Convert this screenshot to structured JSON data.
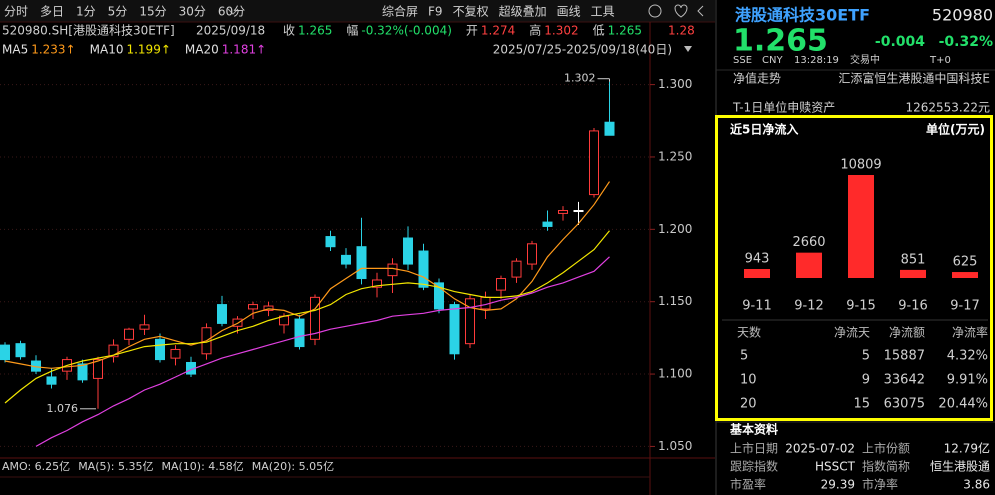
{
  "toolbar": {
    "periods": [
      "分时",
      "多日",
      "1分",
      "5分",
      "15分",
      "30分",
      "60分"
    ],
    "tools": [
      "综合屏",
      "F9",
      "不复权",
      "超级叠加",
      "画线",
      "工具"
    ]
  },
  "info": {
    "symbol": "520980.SH[港股通科技30ETF]",
    "date": "2025/09/18",
    "fields": [
      {
        "label": "收",
        "value": "1.265",
        "color": "#22e06a"
      },
      {
        "label": "幅",
        "value": "-0.32%(-0.004)",
        "color": "#22e06a"
      },
      {
        "label": "开",
        "value": "1.274",
        "color": "#ff4040"
      },
      {
        "label": "高",
        "value": "1.302",
        "color": "#ff4040"
      },
      {
        "label": "低",
        "value": "1.265",
        "color": "#22e06a"
      }
    ],
    "clipped": "1.28"
  },
  "range": "2025/07/25-2025/09/18(40日)",
  "chart_data": [
    {
      "type": "candlestick",
      "open": [
        1.12,
        1.121,
        1.109,
        1.098,
        1.102,
        1.107,
        1.097,
        1.112,
        1.124,
        1.131,
        1.124,
        1.111,
        1.108,
        1.114,
        1.148,
        1.133,
        1.145,
        1.144,
        1.134,
        1.138,
        1.124,
        1.195,
        1.182,
        1.188,
        1.16,
        1.168,
        1.194,
        1.185,
        1.163,
        1.148,
        1.121,
        1.145,
        1.158,
        1.167,
        1.176,
        1.205,
        1.211,
        1.213,
        1.224,
        1.274
      ],
      "high": [
        1.122,
        1.123,
        1.113,
        1.104,
        1.112,
        1.11,
        1.112,
        1.124,
        1.132,
        1.141,
        1.128,
        1.12,
        1.112,
        1.135,
        1.154,
        1.14,
        1.15,
        1.15,
        1.142,
        1.141,
        1.155,
        1.199,
        1.187,
        1.208,
        1.17,
        1.18,
        1.202,
        1.19,
        1.166,
        1.15,
        1.155,
        1.157,
        1.168,
        1.18,
        1.192,
        1.213,
        1.216,
        1.219,
        1.27,
        1.302
      ],
      "low": [
        1.108,
        1.11,
        1.1,
        1.09,
        1.096,
        1.094,
        1.076,
        1.108,
        1.12,
        1.127,
        1.108,
        1.106,
        1.098,
        1.11,
        1.133,
        1.128,
        1.138,
        1.14,
        1.128,
        1.117,
        1.12,
        1.185,
        1.173,
        1.162,
        1.153,
        1.156,
        1.172,
        1.158,
        1.142,
        1.11,
        1.118,
        1.138,
        1.152,
        1.163,
        1.172,
        1.199,
        1.206,
        1.203,
        1.222,
        1.265
      ],
      "close": [
        1.11,
        1.112,
        1.102,
        1.093,
        1.11,
        1.096,
        1.11,
        1.12,
        1.131,
        1.134,
        1.11,
        1.117,
        1.1,
        1.132,
        1.135,
        1.138,
        1.148,
        1.147,
        1.14,
        1.119,
        1.153,
        1.188,
        1.176,
        1.166,
        1.165,
        1.176,
        1.176,
        1.16,
        1.145,
        1.114,
        1.152,
        1.153,
        1.166,
        1.178,
        1.19,
        1.202,
        1.213,
        1.213,
        1.268,
        1.265
      ],
      "up_color": "#ff3b3b",
      "down_color": "#2bd3e6",
      "flat_color": "#ffffff",
      "series": [
        {
          "name": "MA5",
          "color": "#ff9a1a",
          "last_label": "1.233↑",
          "values": [
            1.109,
            1.107,
            1.105,
            1.104,
            1.105,
            1.106,
            1.109,
            1.113,
            1.119,
            1.124,
            1.126,
            1.123,
            1.12,
            1.123,
            1.13,
            1.135,
            1.142,
            1.145,
            1.144,
            1.14,
            1.145,
            1.159,
            1.166,
            1.173,
            1.173,
            1.173,
            1.171,
            1.167,
            1.16,
            1.152,
            1.146,
            1.144,
            1.145,
            1.152,
            1.164,
            1.181,
            1.193,
            1.204,
            1.217,
            1.233
          ]
        },
        {
          "name": "MA10",
          "color": "#f2e600",
          "last_label": "1.199↑",
          "values": [
            1.08,
            1.089,
            1.097,
            1.102,
            1.106,
            1.109,
            1.111,
            1.113,
            1.116,
            1.119,
            1.12,
            1.121,
            1.121,
            1.122,
            1.126,
            1.13,
            1.133,
            1.137,
            1.14,
            1.142,
            1.144,
            1.148,
            1.155,
            1.159,
            1.161,
            1.162,
            1.163,
            1.162,
            1.16,
            1.157,
            1.155,
            1.153,
            1.153,
            1.154,
            1.157,
            1.163,
            1.17,
            1.178,
            1.186,
            1.199
          ]
        },
        {
          "name": "MA20",
          "color": "#e040e0",
          "last_label": "1.181↑",
          "values": [
            null,
            null,
            1.05,
            1.056,
            1.061,
            1.067,
            1.072,
            1.078,
            1.083,
            1.089,
            1.093,
            1.098,
            1.103,
            1.107,
            1.111,
            1.114,
            1.117,
            1.12,
            1.123,
            1.126,
            1.128,
            1.131,
            1.133,
            1.135,
            1.137,
            1.14,
            1.141,
            1.142,
            1.144,
            1.145,
            1.146,
            1.148,
            1.151,
            1.153,
            1.156,
            1.16,
            1.163,
            1.167,
            1.171,
            1.181
          ]
        }
      ],
      "ylim": [
        1.042,
        1.317
      ],
      "yticks": [
        {
          "value": 1.3,
          "label": "1.300"
        },
        {
          "value": 1.25,
          "label": "1.250"
        },
        {
          "value": 1.2,
          "label": "1.200"
        },
        {
          "value": 1.15,
          "label": "1.150"
        },
        {
          "value": 1.1,
          "label": "1.100"
        },
        {
          "value": 1.05,
          "label": "1.050"
        }
      ],
      "grid": true
    },
    {
      "type": "bar",
      "title": "近5日净流入",
      "unit": "单位(万元)",
      "categories": [
        "9-11",
        "9-12",
        "9-15",
        "9-16",
        "9-17"
      ],
      "values": [
        943,
        2660,
        10809,
        851,
        625
      ],
      "color": "#ff2a2a"
    }
  ],
  "amo": [
    {
      "text": "AMO: 6.25亿",
      "color": "#e0e0e0"
    },
    {
      "text": "MA(5): 5.35亿",
      "color": "#e0e0e0"
    },
    {
      "text": "MA(10): 4.58亿",
      "color": "#ff9a1a"
    },
    {
      "text": "MA(20): 5.05亿",
      "color": "#e040e0"
    }
  ],
  "quote": {
    "name": "港股通科技30ETF",
    "code": "520980",
    "price": "1.265",
    "change": "-0.004",
    "change_pct": "-0.32%",
    "meta": [
      "SSE",
      "CNY",
      "13:28:19",
      "交易中",
      "T+0"
    ]
  },
  "details": [
    {
      "label": "净值走势",
      "value": "汇添富恒生港股通中国科技E"
    },
    {
      "label": "T-1日单位申赎资产",
      "value": "1262553.22元"
    }
  ],
  "flow_table": {
    "header": [
      "天数",
      "净流天",
      "净流额",
      "净流率"
    ],
    "rows": [
      [
        "5",
        "5",
        "15887",
        "4.32%"
      ],
      [
        "10",
        "9",
        "33642",
        "9.91%"
      ],
      [
        "20",
        "15",
        "63075",
        "20.44%"
      ]
    ]
  },
  "basic": {
    "title": "基本资料",
    "rows": [
      [
        "上市日期",
        "2025-07-02",
        "上市份额",
        "12.79亿"
      ],
      [
        "跟踪指数",
        "HSSCT",
        "指数简称",
        "恒生港股通"
      ],
      [
        "市盈率",
        "29.39",
        "市净率",
        "3.86"
      ]
    ]
  }
}
